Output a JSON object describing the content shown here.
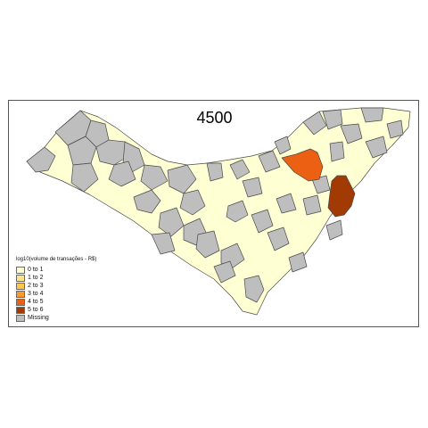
{
  "map": {
    "title": "4500",
    "colors": {
      "border": "#4a4a4a",
      "class_0_1": "#FFFFD4",
      "class_1_2": "#FEE391",
      "class_2_3": "#FEC44F",
      "class_3_4": "#FE9929",
      "class_4_5": "#EC6014",
      "class_5_6": "#A23A04",
      "missing": "#BEBEBE"
    }
  },
  "legend": {
    "title": "log10(volume de transações - R$)",
    "items": [
      {
        "label": "0 to 1",
        "color": "#FFFFD4"
      },
      {
        "label": "1 to 2",
        "color": "#FEE391"
      },
      {
        "label": "2 to 3",
        "color": "#FEC44F"
      },
      {
        "label": "3 to 4",
        "color": "#FE9929"
      },
      {
        "label": "4 to 5",
        "color": "#EC6014"
      },
      {
        "label": "5 to 6",
        "color": "#A23A04"
      },
      {
        "label": "Missing",
        "color": "#BEBEBE"
      }
    ]
  }
}
